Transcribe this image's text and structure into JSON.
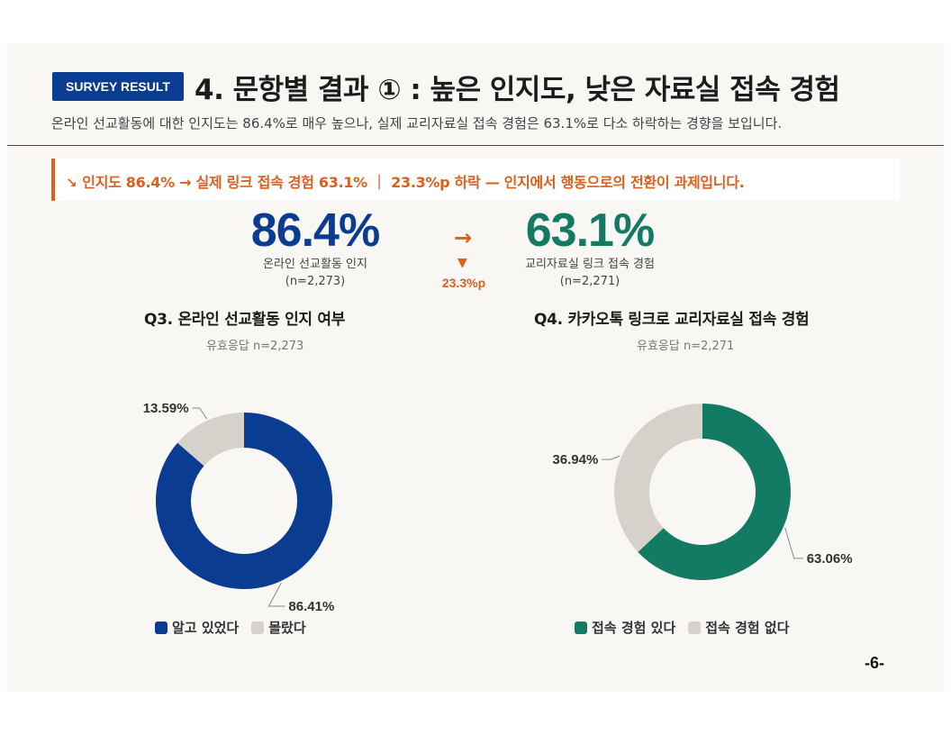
{
  "header": {
    "badge": "SURVEY RESULT",
    "title": "4. 문항별 결과 ① : 높은 인지도, 낮은 자료실 접속 경험",
    "subtitle": "온라인 선교활동에 대한 인지도는 86.4%로 매우 높으나, 실제 교리자료실 접속 경험은 63.1%로 다소 하락하는 경향을 보입니다."
  },
  "callout": {
    "icon": "↘",
    "text": "인지도 86.4% → 실제 링크 접속 경험 63.1% ｜ 23.3%p 하락 — 인지에서 행동으로의 전환이 과제입니다."
  },
  "stats": {
    "left": {
      "value": "86.4%",
      "label": "온라인 선교활동 인지",
      "n": "(n=2,273)"
    },
    "arrow": "→",
    "down": "▼",
    "drop": "23.3%p",
    "right": {
      "value": "63.1%",
      "label": "교리자료실 링크 접속 경험",
      "n": "(n=2,271)"
    }
  },
  "colors": {
    "blue": "#0a3d91",
    "green": "#137a63",
    "grey": "#d6d2cb",
    "orange": "#d9601e"
  },
  "chart_data": [
    {
      "type": "pie",
      "donut": true,
      "title": "Q3. 온라인 선교활동 인지 여부",
      "subtitle": "유효응답 n=2,273",
      "categories": [
        "알고 있었다",
        "몰랐다"
      ],
      "values": [
        86.41,
        13.59
      ],
      "labels": [
        "86.41%",
        "13.59%"
      ],
      "colors": [
        "#0a3d91",
        "#d6d2cb"
      ],
      "legend": "bottom"
    },
    {
      "type": "pie",
      "donut": true,
      "title": "Q4. 카카오톡 링크로 교리자료실 접속 경험",
      "subtitle": "유효응답 n=2,271",
      "categories": [
        "접속 경험 있다",
        "접속 경험 없다"
      ],
      "values": [
        63.06,
        36.94
      ],
      "labels": [
        "63.06%",
        "36.94%"
      ],
      "colors": [
        "#137a63",
        "#d6d2cb"
      ],
      "legend": "bottom"
    }
  ],
  "page": "-6-"
}
